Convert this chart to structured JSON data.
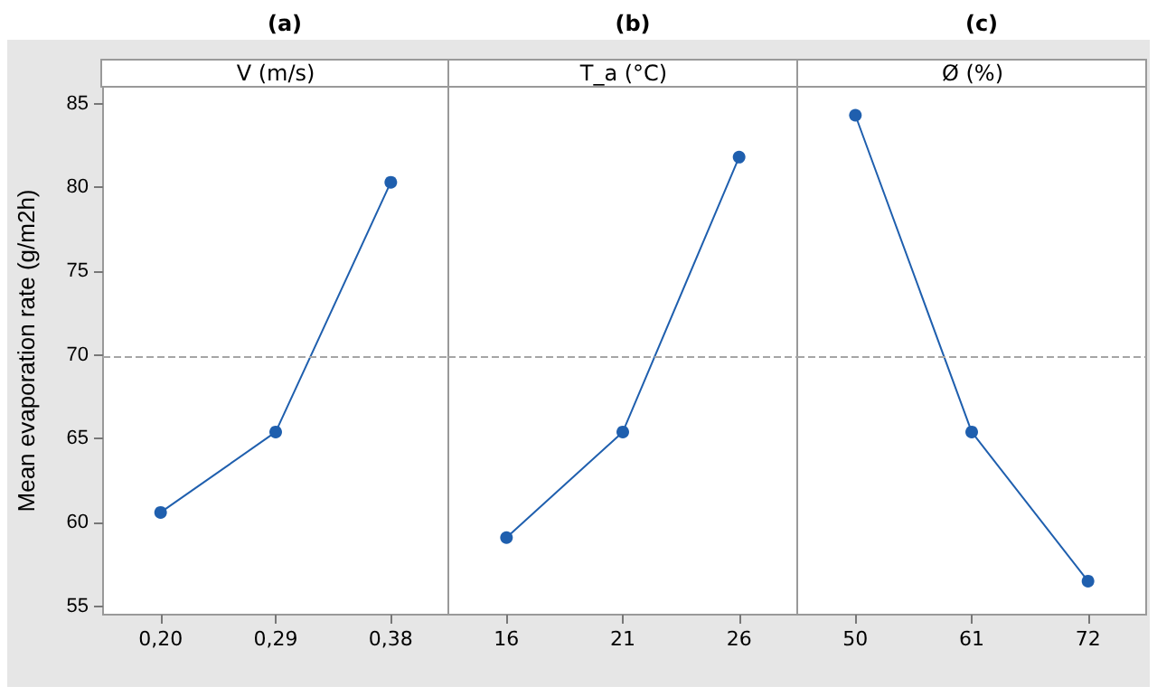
{
  "chart_data": [
    {
      "type": "line",
      "title": "(a)",
      "subtitle": "V (m/s)",
      "ylabel": "Mean evaporation rate (g/m2h)",
      "categories": [
        "0,20",
        "0,29",
        "0,38"
      ],
      "series": [
        {
          "color": "#1f5fae",
          "values": [
            60.6,
            65.4,
            80.3
          ]
        }
      ],
      "ylim": [
        54.5,
        86
      ],
      "yticks": [
        55,
        60,
        65,
        70,
        75,
        80,
        85
      ],
      "marker": "circle",
      "line_style": "solid",
      "grid": false,
      "ref_lines": [
        {
          "axis": "y",
          "value": 69.9,
          "color": "#a6a6a6",
          "line_style": "dashed"
        }
      ]
    },
    {
      "type": "line",
      "title": "(b)",
      "subtitle": "T_a (°C)",
      "categories": [
        "16",
        "21",
        "26"
      ],
      "series": [
        {
          "color": "#1f5fae",
          "values": [
            59.1,
            65.4,
            81.8
          ]
        }
      ],
      "ylim": [
        54.5,
        86
      ],
      "yticks": [
        55,
        60,
        65,
        70,
        75,
        80,
        85
      ],
      "tick_labels": "x",
      "marker": "circle",
      "line_style": "solid",
      "grid": false,
      "ref_lines": [
        {
          "axis": "y",
          "value": 69.9,
          "color": "#a6a6a6",
          "line_style": "dashed"
        }
      ]
    },
    {
      "type": "line",
      "title": "(c)",
      "subtitle": "Ø (%)",
      "categories": [
        "50",
        "61",
        "72"
      ],
      "series": [
        {
          "color": "#1f5fae",
          "values": [
            84.3,
            65.4,
            56.5
          ]
        }
      ],
      "ylim": [
        54.5,
        86
      ],
      "yticks": [
        55,
        60,
        65,
        70,
        75,
        80,
        85
      ],
      "tick_labels": "x",
      "marker": "circle",
      "line_style": "solid",
      "grid": false,
      "ref_lines": [
        {
          "axis": "y",
          "value": 69.9,
          "color": "#a6a6a6",
          "line_style": "dashed"
        }
      ]
    }
  ]
}
